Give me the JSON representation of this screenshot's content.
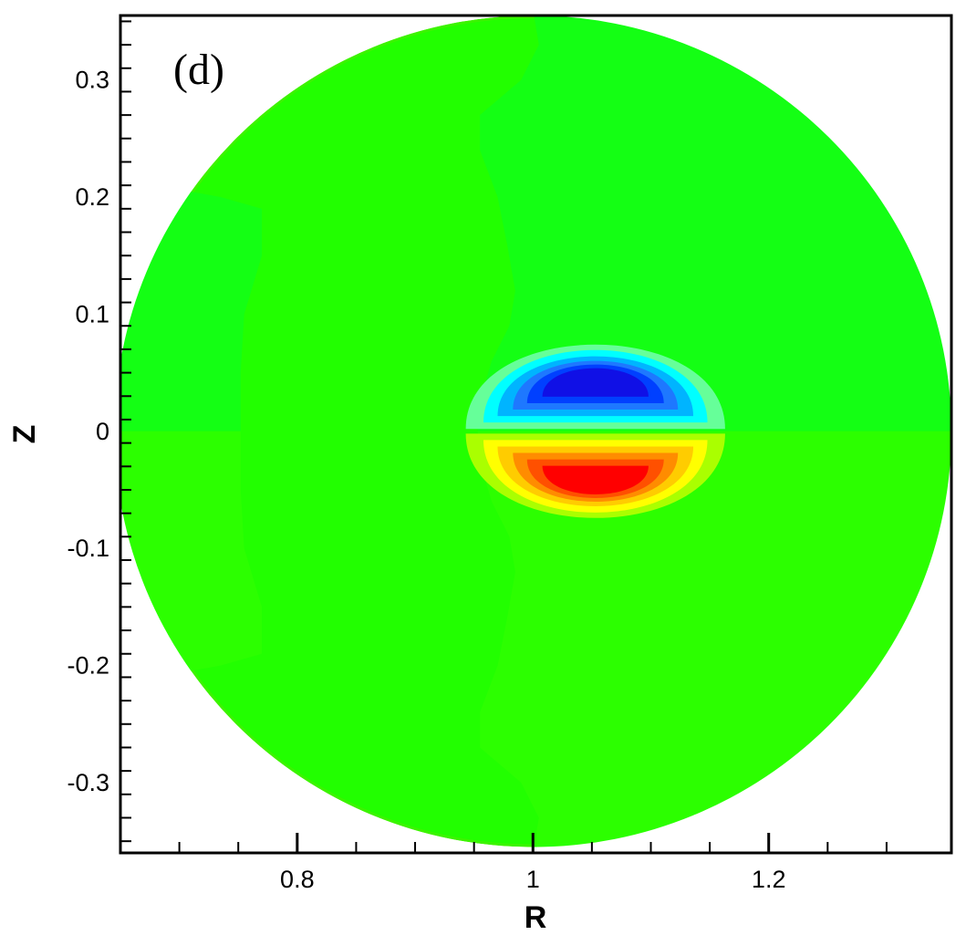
{
  "chart_data": {
    "type": "heatmap",
    "panel_label": "(d)",
    "xlabel": "R",
    "ylabel": "Z",
    "xlim": [
      0.65,
      1.355
    ],
    "ylim": [
      -0.36,
      0.355
    ],
    "x_ticks": [
      {
        "value": 0.8,
        "label": "0.8"
      },
      {
        "value": 1.0,
        "label": "1"
      },
      {
        "value": 1.2,
        "label": "1.2"
      }
    ],
    "y_ticks": [
      {
        "value": 0.3,
        "label": "0.3"
      },
      {
        "value": 0.2,
        "label": "0.2"
      },
      {
        "value": 0.1,
        "label": "0.1"
      },
      {
        "value": 0.0,
        "label": "0"
      },
      {
        "value": -0.1,
        "label": "-0.1"
      },
      {
        "value": -0.2,
        "label": "-0.2"
      },
      {
        "value": -0.3,
        "label": "-0.3"
      }
    ],
    "grid": false,
    "domain": {
      "shape": "circle",
      "center": [
        1.0,
        0.0
      ],
      "radius": 0.355
    },
    "background_color": "#22ff00",
    "field_colors": {
      "outer_upper": "#14ff14",
      "outer_lower": "#2cff00",
      "mid_band": "#22ff00",
      "edge_band": "#3cf400"
    },
    "contour_colors_negative": [
      "#22ff00",
      "#66ff99",
      "#00ffff",
      "#00b4ff",
      "#1e78ff",
      "#0040ff",
      "#1010e6"
    ],
    "contour_colors_positive": [
      "#2cff00",
      "#aaff00",
      "#ffff00",
      "#ffcc00",
      "#ff8c00",
      "#ff5000",
      "#ff0000"
    ],
    "structure": {
      "center_R": 1.053,
      "zero_plane": 0.0,
      "max_extent_Z": 0.098,
      "levels": [
        {
          "halfwidth_R": 0.11,
          "depth_Z": 0.098
        },
        {
          "halfwidth_R": 0.095,
          "depth_Z": 0.09
        },
        {
          "halfwidth_R": 0.083,
          "depth_Z": 0.081
        },
        {
          "halfwidth_R": 0.07,
          "depth_Z": 0.074
        },
        {
          "halfwidth_R": 0.058,
          "depth_Z": 0.068
        },
        {
          "halfwidth_R": 0.045,
          "depth_Z": 0.062
        }
      ]
    }
  }
}
